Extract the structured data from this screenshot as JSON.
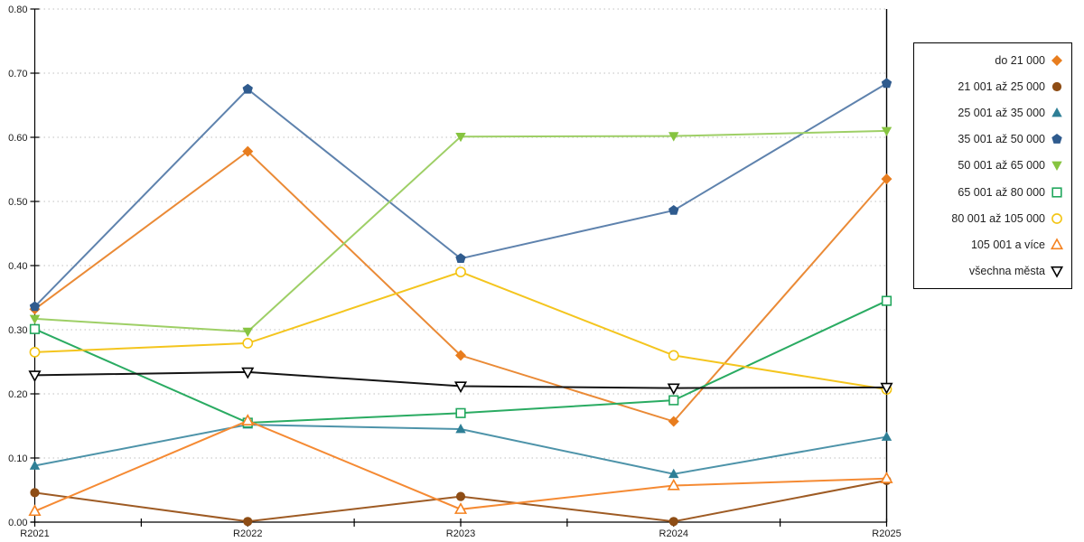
{
  "chart_data": {
    "type": "line",
    "title": "",
    "xlabel": "",
    "ylabel": "",
    "categories": [
      "R2021",
      "R2022",
      "R2023",
      "R2024",
      "R2025"
    ],
    "series": [
      {
        "name": "do 21 000",
        "marker": "diamond",
        "style": "filled",
        "color": "#E87D1E",
        "line_color": "#EA8A36",
        "values": [
          0.332,
          0.578,
          0.26,
          0.157,
          0.535
        ]
      },
      {
        "name": "21 001 až 25 000",
        "marker": "circle",
        "style": "filled",
        "color": "#8E4D15",
        "line_color": "#9E5B24",
        "values": [
          0.046,
          0.001,
          0.04,
          0.001,
          0.065
        ]
      },
      {
        "name": "25 001 až 35 000",
        "marker": "triangle-up",
        "style": "filled",
        "color": "#2E7F96",
        "line_color": "#4D93A9",
        "values": [
          0.088,
          0.152,
          0.145,
          0.075,
          0.133
        ]
      },
      {
        "name": "35 001 až 50 000",
        "marker": "pentagon",
        "style": "filled",
        "color": "#2F5B8E",
        "line_color": "#5E82AD",
        "values": [
          0.336,
          0.675,
          0.411,
          0.486,
          0.684
        ]
      },
      {
        "name": "50 001 až 65 000",
        "marker": "triangle-down",
        "style": "filled",
        "color": "#86C440",
        "line_color": "#9ECF66",
        "values": [
          0.317,
          0.297,
          0.601,
          0.602,
          0.61
        ]
      },
      {
        "name": "65 001 až 80 000",
        "marker": "square",
        "style": "open",
        "color": "#22A75D",
        "line_color": "#2AAB62",
        "values": [
          0.301,
          0.155,
          0.17,
          0.19,
          0.345
        ]
      },
      {
        "name": "80 001 až 105 000",
        "marker": "circle",
        "style": "open",
        "color": "#F3C412",
        "line_color": "#F4C51E",
        "values": [
          0.265,
          0.279,
          0.39,
          0.26,
          0.207
        ]
      },
      {
        "name": "105 001 a více",
        "marker": "triangle-up",
        "style": "open",
        "color": "#F5821F",
        "line_color": "#F58A33",
        "values": [
          0.017,
          0.158,
          0.02,
          0.057,
          0.068
        ]
      },
      {
        "name": "všechna města",
        "marker": "triangle-down",
        "style": "open",
        "color": "#000000",
        "line_color": "#141414",
        "values": [
          0.229,
          0.234,
          0.212,
          0.209,
          0.21
        ]
      }
    ],
    "ylim": [
      0.0,
      0.8
    ],
    "ytick_step": 0.1,
    "ytick_decimals": 2,
    "grid": "horizontal-dotted",
    "legend_position": "right"
  },
  "colors": {
    "background": "#ffffff",
    "axis": "#000000",
    "gridline": "#bfbfbf",
    "tick_text": "#1a1a1a"
  }
}
